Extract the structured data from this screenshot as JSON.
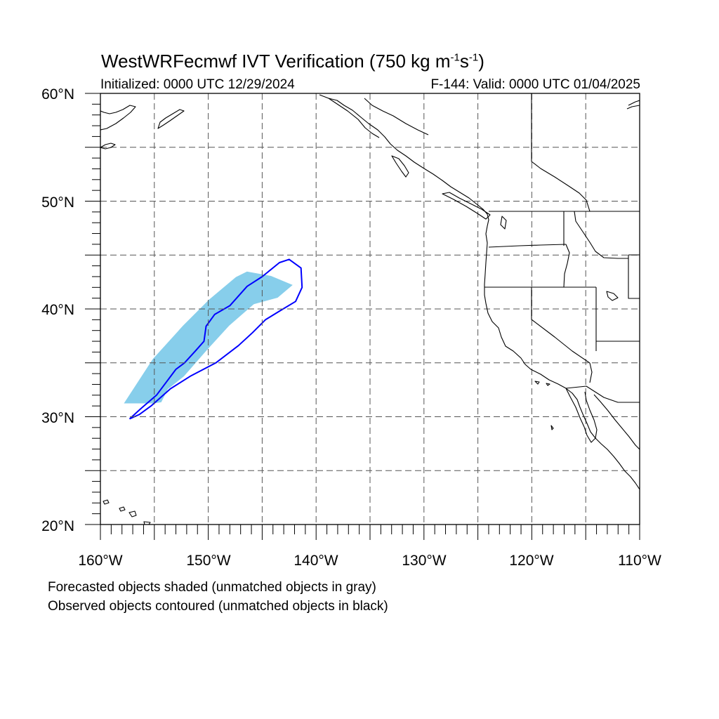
{
  "title": {
    "main_prefix": "WestWRFecmwf IVT Verification (750 kg m",
    "exp1": "-1",
    "middle": "s",
    "exp2": "-1",
    "suffix": ")"
  },
  "initialized": "Initialized: 0000 UTC 12/29/2024",
  "valid": "F-144: Valid: 0000 UTC 01/04/2025",
  "footnotes": {
    "line1": "Forecasted objects shaded (unmatched objects in gray)",
    "line2": "Observed objects contoured (unmatched objects in black)"
  },
  "axes": {
    "lat_labels": [
      "60°N",
      "50°N",
      "40°N",
      "30°N",
      "20°N"
    ],
    "lon_labels": [
      "160°W",
      "150°W",
      "140°W",
      "130°W",
      "120°W",
      "110°W"
    ],
    "lat_range": [
      20,
      60
    ],
    "lon_range": [
      -160,
      -110
    ],
    "grid": "dashed every 5 degrees"
  },
  "colors": {
    "forecast_fill": "#87ceeb",
    "observed_contour": "#0000ff",
    "coastline": "#000000",
    "grid": "#555555"
  },
  "objects": {
    "forecast": [
      [
        -157.7,
        31.3
      ],
      [
        -155.1,
        35.3
      ],
      [
        -152.3,
        38.4
      ],
      [
        -149.9,
        40.8
      ],
      [
        -147.4,
        42.9
      ],
      [
        -146.4,
        43.4
      ],
      [
        -144.2,
        43.0
      ],
      [
        -142.3,
        42.2
      ],
      [
        -143.6,
        41.1
      ],
      [
        -145.8,
        40.5
      ],
      [
        -148.1,
        38.5
      ],
      [
        -150.2,
        36.2
      ],
      [
        -152.3,
        33.8
      ],
      [
        -153.8,
        32.6
      ],
      [
        -154.4,
        31.4
      ],
      [
        -155.1,
        31.3
      ]
    ],
    "observed": [
      [
        -157.3,
        29.8
      ],
      [
        -156.4,
        30.2
      ],
      [
        -155.3,
        31.0
      ],
      [
        -153.5,
        32.6
      ],
      [
        -151.6,
        33.8
      ],
      [
        -149.3,
        35.0
      ],
      [
        -147.2,
        36.6
      ],
      [
        -145.9,
        37.8
      ],
      [
        -144.7,
        39.0
      ],
      [
        -143.4,
        39.8
      ],
      [
        -141.9,
        40.7
      ],
      [
        -141.3,
        42.0
      ],
      [
        -141.4,
        43.8
      ],
      [
        -142.5,
        44.6
      ],
      [
        -143.4,
        44.3
      ],
      [
        -145.0,
        43.0
      ],
      [
        -146.4,
        42.1
      ],
      [
        -148.0,
        40.3
      ],
      [
        -149.4,
        39.5
      ],
      [
        -150.2,
        38.4
      ],
      [
        -150.4,
        37.0
      ],
      [
        -151.2,
        36.1
      ],
      [
        -152.2,
        35.0
      ],
      [
        -153.0,
        34.4
      ],
      [
        -154.8,
        32.0
      ],
      [
        -156.2,
        30.8
      ],
      [
        -157.3,
        29.8
      ]
    ]
  }
}
